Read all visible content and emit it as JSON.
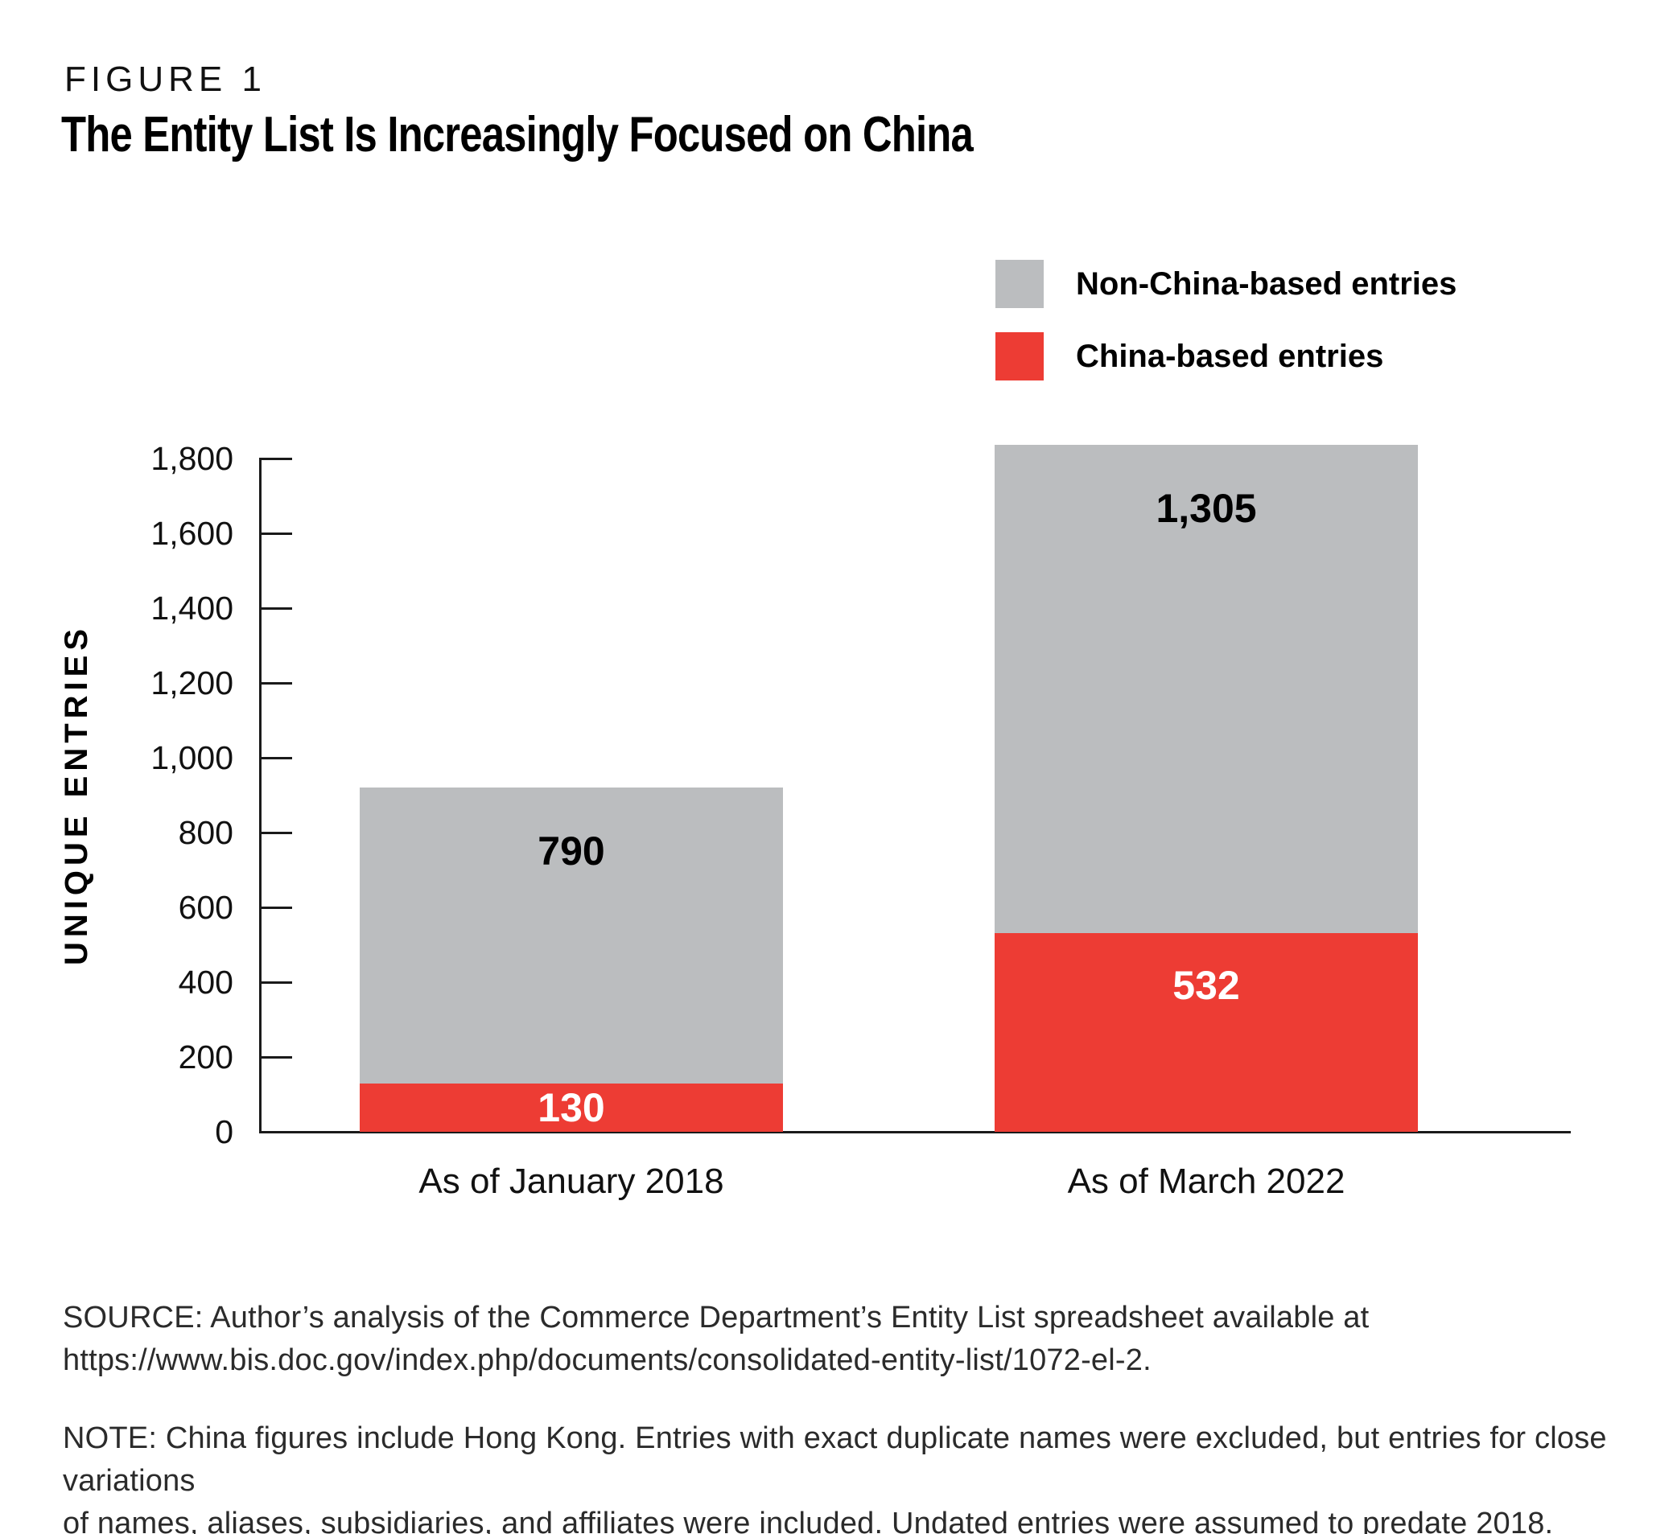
{
  "figure": {
    "kicker": "FIGURE 1",
    "title": "The Entity List Is Increasingly Focused on China"
  },
  "legend": [
    {
      "label": "Non-China-based entries",
      "color": "#BBBDBF"
    },
    {
      "label": "China-based entries",
      "color": "#ED3C34"
    }
  ],
  "chart_data": {
    "type": "bar",
    "stacked": true,
    "categories": [
      "As of January 2018",
      "As of March 2022"
    ],
    "series": [
      {
        "name": "China-based entries",
        "color": "#ED3C34",
        "label_color": "#FFFFFF",
        "values": [
          130,
          532
        ]
      },
      {
        "name": "Non-China-based entries",
        "color": "#BBBDBF",
        "label_color": "#000000",
        "values": [
          790,
          1305
        ]
      }
    ],
    "totals": [
      920,
      1837
    ],
    "ylabel": "UNIQUE ENTRIES",
    "ylim": [
      0,
      1800
    ],
    "ytick_step": 200,
    "ytick_labels": [
      "0",
      "200",
      "400",
      "600",
      "800",
      "1,000",
      "1,200",
      "1,400",
      "1,600",
      "1,800"
    ],
    "grid": false,
    "legend_position": "top-right"
  },
  "footer": {
    "source_lines": [
      "SOURCE: Author’s analysis of the Commerce Department’s Entity List spreadsheet available at",
      "https://www.bis.doc.gov/index.php/documents/consolidated-entity-list/1072-el-2."
    ],
    "note_lines": [
      "NOTE: China figures include Hong Kong. Entries with exact duplicate names were excluded, but entries for close variations",
      "of names, aliases, subsidiaries, and affiliates were included. Undated entries were assumed to predate 2018."
    ]
  },
  "colors": {
    "china_red": "#ED3C34",
    "non_china_gray": "#BBBDBF",
    "axis": "#1A1A1A",
    "background": "#FFFFFF"
  }
}
